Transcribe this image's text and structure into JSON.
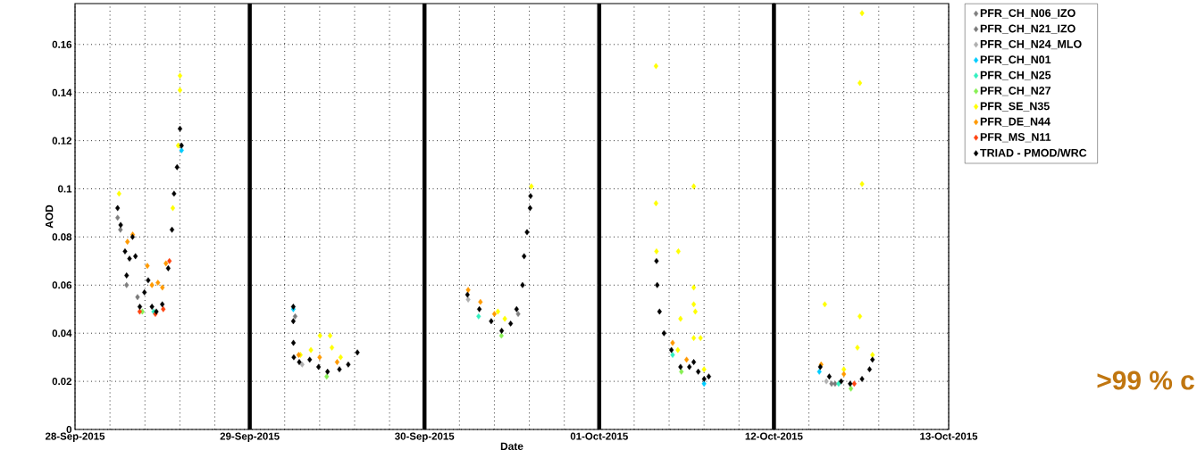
{
  "chart_data": [
    {
      "type": "scatter",
      "ylabel": "AOD",
      "xlabel": "Date",
      "xlim": [
        "2015-09-28",
        "2015-10-02"
      ],
      "ylim": [
        0,
        0.177
      ],
      "xticks": [
        {
          "value": "2015-09-28",
          "label": "28-Sep-2015"
        },
        {
          "value": "2015-09-28T04:48",
          "label": null
        },
        {
          "value": "2015-09-28T09:36",
          "label": null
        },
        {
          "value": "2015-09-28T14:24",
          "label": null
        },
        {
          "value": "2015-09-28T19:12",
          "label": null
        },
        {
          "value": "2015-09-29",
          "label": "29-Sep-2015"
        },
        {
          "value": "2015-09-29T04:48",
          "label": null
        },
        {
          "value": "2015-09-29T09:36",
          "label": null
        },
        {
          "value": "2015-09-29T14:24",
          "label": null
        },
        {
          "value": "2015-09-29T19:12",
          "label": null
        },
        {
          "value": "2015-09-30",
          "label": "30-Sep-2015"
        },
        {
          "value": "2015-09-30T04:48",
          "label": null
        },
        {
          "value": "2015-09-30T09:36",
          "label": null
        },
        {
          "value": "2015-09-30T14:24",
          "label": null
        },
        {
          "value": "2015-09-30T19:12",
          "label": null
        },
        {
          "value": "2015-10-01",
          "label": "01-Oct-2015"
        },
        {
          "value": "2015-10-01T04:48",
          "label": null
        },
        {
          "value": "2015-10-01T09:36",
          "label": null
        },
        {
          "value": "2015-10-01T14:24",
          "label": null
        },
        {
          "value": "2015-10-01T19:12",
          "label": null
        },
        {
          "value": "2015-10-02",
          "label": null
        }
      ],
      "yticks": [
        0,
        0.02,
        0.04,
        0.06,
        0.08,
        0.1,
        0.12,
        0.14,
        0.16
      ],
      "grid": true,
      "marker": "diamond",
      "series": [
        {
          "color": "#808080",
          "x": [
            "2015-09-28T05:51",
            "2015-09-28T07:05",
            "2015-09-30T12:52"
          ],
          "values": [
            0.088,
            0.06,
            0.048
          ]
        },
        {
          "color": "#7a7a7a",
          "x": [
            "2015-09-28T06:14",
            "2015-09-28T08:35",
            "2015-09-29T06:14"
          ],
          "values": [
            0.083,
            0.055,
            0.047
          ]
        },
        {
          "color": "#b0b0b0",
          "x": [
            "2015-09-29T07:12",
            "2015-09-30T06:00"
          ],
          "values": [
            0.027,
            0.054
          ]
        },
        {
          "color": "#00ccff",
          "x": [
            "2015-09-28T14:38",
            "2015-09-29T05:59",
            "2015-10-01T14:24"
          ],
          "values": [
            0.116,
            0.05,
            0.019
          ]
        },
        {
          "color": "#33f0c0",
          "x": [
            "2015-09-28T10:48",
            "2015-09-30T07:26",
            "2015-10-01T10:05"
          ],
          "values": [
            0.049,
            0.047,
            0.031
          ]
        },
        {
          "color": "#88f055",
          "x": [
            "2015-09-28T09:15",
            "2015-09-29T10:34",
            "2015-09-30T10:34",
            "2015-10-01T11:17"
          ],
          "values": [
            0.049,
            0.022,
            0.039,
            0.024
          ]
        },
        {
          "color": "#ffff00",
          "x": [
            "2015-09-28T06:03",
            "2015-09-28T14:25",
            "2015-09-28T14:25",
            "2015-09-28T14:10",
            "2015-09-28T13:26",
            "2015-09-29T06:58",
            "2015-09-29T08:24",
            "2015-09-29T09:39",
            "2015-09-29T11:02",
            "2015-09-29T11:17",
            "2015-09-29T12:29",
            "2015-09-30T10:05",
            "2015-09-30T11:02",
            "2015-09-30T14:41",
            "2015-10-01T07:48",
            "2015-10-01T07:48",
            "2015-10-01T07:52",
            "2015-10-01T12:59",
            "2015-10-01T10:52",
            "2015-10-01T12:59",
            "2015-10-01T12:59",
            "2015-10-01T13:12",
            "2015-10-01T11:10",
            "2015-10-01T13:55",
            "2015-10-01T12:59",
            "2015-10-01T10:48",
            "2015-10-01T14:24"
          ],
          "values": [
            0.098,
            0.147,
            0.141,
            0.118,
            0.092,
            0.031,
            0.033,
            0.039,
            0.039,
            0.034,
            0.03,
            0.049,
            0.046,
            0.101,
            0.151,
            0.094,
            0.074,
            0.101,
            0.074,
            0.059,
            0.052,
            0.049,
            0.046,
            0.038,
            0.038,
            0.033,
            0.025
          ]
        },
        {
          "color": "#ff9900",
          "x": [
            "2015-09-28T07:12",
            "2015-09-28T07:55",
            "2015-09-28T09:56",
            "2015-09-28T10:34",
            "2015-09-28T11:23",
            "2015-09-28T12:00",
            "2015-09-28T12:29",
            "2015-09-29T06:43",
            "2015-09-29T09:36",
            "2015-09-29T12:00",
            "2015-09-30T06:00",
            "2015-09-30T07:41",
            "2015-09-30T09:36",
            "2015-10-01T10:05",
            "2015-10-01T12:00"
          ],
          "values": [
            0.078,
            0.081,
            0.068,
            0.06,
            0.061,
            0.059,
            0.069,
            0.031,
            0.03,
            0.028,
            0.058,
            0.053,
            0.048,
            0.036,
            0.029
          ]
        },
        {
          "color": "#ff4411",
          "x": [
            "2015-09-28T08:53",
            "2015-09-28T11:02",
            "2015-09-28T12:07",
            "2015-09-28T12:58"
          ],
          "values": [
            0.049,
            0.048,
            0.05,
            0.07
          ]
        },
        {
          "color": "#000000",
          "x": [
            "2015-09-28T05:51",
            "2015-09-28T06:16",
            "2015-09-28T06:52",
            "2015-09-28T07:05",
            "2015-09-28T07:29",
            "2015-09-28T07:54",
            "2015-09-28T08:18",
            "2015-09-28T08:54",
            "2015-09-28T09:32",
            "2015-09-28T10:03",
            "2015-09-28T10:34",
            "2015-09-28T11:10",
            "2015-09-28T11:59",
            "2015-09-28T12:48",
            "2015-09-28T13:19",
            "2015-09-28T13:36",
            "2015-09-28T14:01",
            "2015-09-28T14:25",
            "2015-09-28T14:38",
            "2015-09-29T05:59",
            "2015-09-29T05:59",
            "2015-09-29T06:00",
            "2015-09-29T06:03",
            "2015-09-29T06:48",
            "2015-09-29T08:14",
            "2015-09-29T09:27",
            "2015-09-29T10:41",
            "2015-09-29T12:19",
            "2015-09-29T13:32",
            "2015-09-29T14:47",
            "2015-09-30T05:54",
            "2015-09-30T07:32",
            "2015-09-30T09:10",
            "2015-09-30T10:36",
            "2015-09-30T11:50",
            "2015-09-30T12:39",
            "2015-09-30T13:28",
            "2015-09-30T13:41",
            "2015-09-30T14:05",
            "2015-09-30T14:30",
            "2015-09-30T14:34",
            "2015-10-01T07:52",
            "2015-10-01T07:58",
            "2015-10-01T08:17",
            "2015-10-01T08:54",
            "2015-10-01T09:55",
            "2015-10-01T11:10",
            "2015-10-01T12:23",
            "2015-10-01T12:59",
            "2015-10-01T13:36",
            "2015-10-01T14:25",
            "2015-10-01T15:03"
          ],
          "values": [
            0.092,
            0.085,
            0.074,
            0.064,
            0.071,
            0.08,
            0.072,
            0.051,
            0.057,
            0.062,
            0.051,
            0.049,
            0.052,
            0.067,
            0.083,
            0.098,
            0.109,
            0.125,
            0.118,
            0.051,
            0.045,
            0.036,
            0.03,
            0.028,
            0.029,
            0.026,
            0.024,
            0.025,
            0.027,
            0.032,
            0.056,
            0.05,
            0.045,
            0.041,
            0.044,
            0.05,
            0.06,
            0.072,
            0.082,
            0.092,
            0.097,
            0.07,
            0.06,
            0.049,
            0.04,
            0.033,
            0.026,
            0.026,
            0.028,
            0.024,
            0.021,
            0.022
          ]
        }
      ]
    },
    {
      "type": "scatter",
      "tick_labels": "x",
      "xlim": [
        "2015-10-12",
        "2015-10-13"
      ],
      "ylim": [
        0,
        0.177
      ],
      "xticks": [
        {
          "value": "2015-10-12",
          "label": "12-Oct-2015"
        },
        {
          "value": "2015-10-12T04:48",
          "label": null
        },
        {
          "value": "2015-10-12T09:36",
          "label": null
        },
        {
          "value": "2015-10-12T14:24",
          "label": null
        },
        {
          "value": "2015-10-12T19:12",
          "label": null
        },
        {
          "value": "2015-10-13",
          "label": "13-Oct-2015"
        }
      ],
      "yticks": [
        0,
        0.02,
        0.04,
        0.06,
        0.08,
        0.1,
        0.12,
        0.14,
        0.16
      ],
      "grid": true,
      "marker": "diamond",
      "legend": "top right",
      "annotations": [
        ">99 % c"
      ],
      "series": [
        {
          "name": "PFR_CH_N06_IZO",
          "color": "#808080",
          "x": [
            "2015-10-12T07:55"
          ],
          "values": [
            0.019
          ]
        },
        {
          "name": "PFR_CH_N21_IZO",
          "color": "#7a7a7a",
          "x": [
            "2015-10-12T08:24"
          ],
          "values": [
            0.019
          ]
        },
        {
          "name": "PFR_CH_N24_MLO",
          "color": "#b0b0b0",
          "x": [
            "2015-10-12T07:12"
          ],
          "values": [
            0.02
          ]
        },
        {
          "name": "PFR_CH_N01",
          "color": "#00ccff",
          "x": [
            "2015-10-12T06:14"
          ],
          "values": [
            0.024
          ]
        },
        {
          "name": "PFR_CH_N25",
          "color": "#33f0c0",
          "x": [
            "2015-10-12T08:53"
          ],
          "values": [
            0.019
          ]
        },
        {
          "name": "PFR_CH_N27",
          "color": "#88f055",
          "x": [
            "2015-10-12T10:34"
          ],
          "values": [
            0.017
          ]
        },
        {
          "name": "PFR_SE_N35",
          "color": "#ffff00",
          "x": [
            "2015-10-12T06:59",
            "2015-10-12T12:06",
            "2015-10-12T11:48",
            "2015-10-12T12:06",
            "2015-10-12T11:48",
            "2015-10-12T11:28",
            "2015-10-12T13:32",
            "2015-10-12T09:36"
          ],
          "values": [
            0.052,
            0.102,
            0.144,
            0.173,
            0.047,
            0.034,
            0.031,
            0.025
          ]
        },
        {
          "name": "PFR_DE_N44",
          "color": "#ff9900",
          "x": [
            "2015-10-12T06:29",
            "2015-10-12T09:36"
          ],
          "values": [
            0.027,
            0.023
          ]
        },
        {
          "name": "PFR_MS_N11",
          "color": "#ff4411",
          "x": [
            "2015-10-12T11:02"
          ],
          "values": [
            0.019
          ]
        },
        {
          "name": "TRIAD - PMOD/WRC",
          "color": "#000000",
          "x": [
            "2015-10-12T06:22",
            "2015-10-12T07:36",
            "2015-10-12T09:14",
            "2015-10-12T10:28",
            "2015-10-12T12:06",
            "2015-10-12T13:08",
            "2015-10-12T13:32"
          ],
          "values": [
            0.026,
            0.022,
            0.02,
            0.019,
            0.021,
            0.025,
            0.029
          ]
        }
      ]
    }
  ]
}
